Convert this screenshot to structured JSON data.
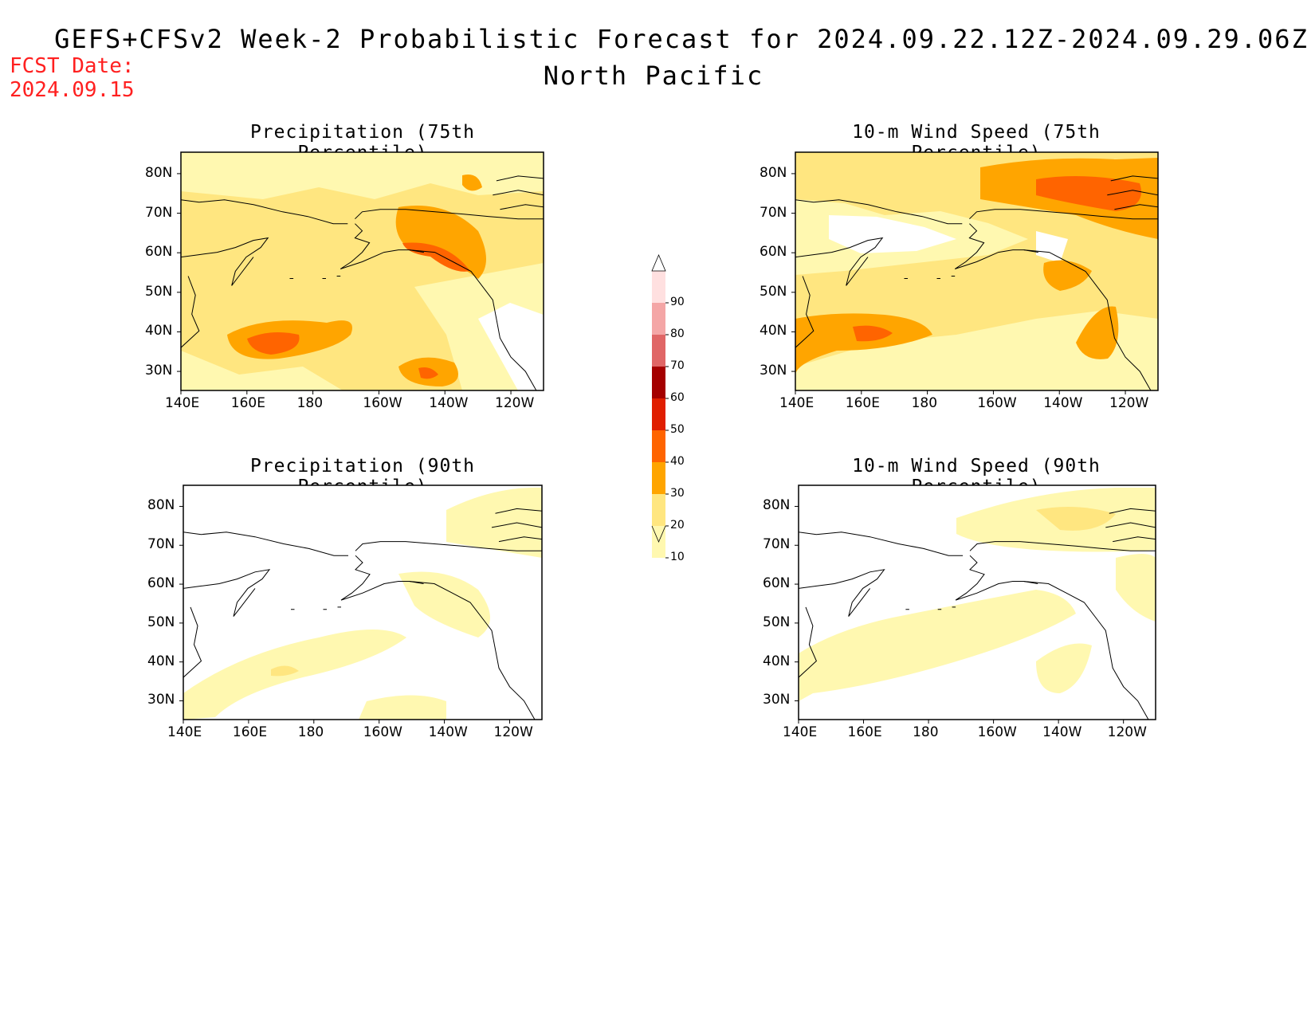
{
  "header": {
    "title_line1": "GEFS+CFSv2 Week-2 Probabilistic Forecast for 2024.09.22.12Z-2024.09.29.06Z",
    "title_line2": "North Pacific",
    "fcst_label": "FCST Date:",
    "fcst_date": "2024.09.15"
  },
  "panels": [
    {
      "id": "precip75",
      "title": "Precipitation (75th Percentile)"
    },
    {
      "id": "wind75",
      "title": "10-m Wind Speed (75th Percentile)"
    },
    {
      "id": "precip90",
      "title": "Precipitation (90th Percentile)"
    },
    {
      "id": "wind90",
      "title": "10-m Wind Speed (90th Percentile)"
    }
  ],
  "axes": {
    "lat_labels": [
      "80N",
      "70N",
      "60N",
      "50N",
      "40N",
      "30N"
    ],
    "lon_labels": [
      "140E",
      "160E",
      "180",
      "160W",
      "140W",
      "120W"
    ]
  },
  "colorbar": {
    "labels": [
      "10",
      "20",
      "30",
      "40",
      "50",
      "60",
      "70",
      "80",
      "90"
    ],
    "colors": [
      "#fff8b0",
      "#ffe680",
      "#ffa500",
      "#ff6400",
      "#e01e00",
      "#a50000",
      "#e06666",
      "#f4a6a6",
      "#ffe0e0"
    ]
  }
}
